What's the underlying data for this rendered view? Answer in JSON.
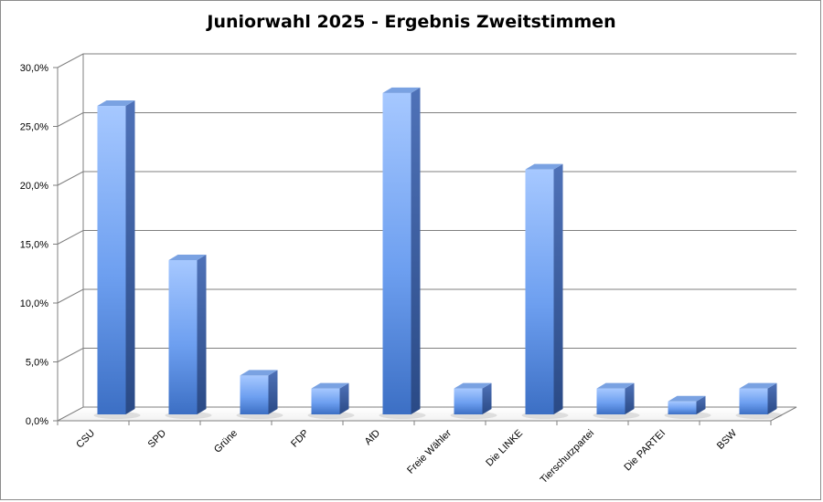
{
  "chart_data": {
    "type": "bar",
    "title": "Juniorwahl 2025 - Ergebnis Zweitstimmen",
    "xlabel": "",
    "ylabel": "",
    "categories": [
      "CSU",
      "SPD",
      "Grüne",
      "FDP",
      "AfD",
      "Freie Wähler",
      "Die LINKE",
      "Tierschutzpartei",
      "Die PARTEI",
      "BSW"
    ],
    "values": [
      26.2,
      13.1,
      3.3,
      2.2,
      27.3,
      2.2,
      20.8,
      2.2,
      1.1,
      2.2
    ],
    "ylim": [
      0,
      30
    ],
    "yticks": [
      "0,0%",
      "5,0%",
      "10,0%",
      "15,0%",
      "20,0%",
      "25,0%",
      "30,0%"
    ],
    "grid": true,
    "legend": "none",
    "style": "3d-column",
    "colors": {
      "bar_light": "#a6c8ff",
      "bar_mid": "#5f94e6",
      "bar_dark": "#3c6fc4",
      "bar_side": "#34569a",
      "bar_top": "#7aa2e2",
      "grid": "#7f7f7f"
    }
  }
}
